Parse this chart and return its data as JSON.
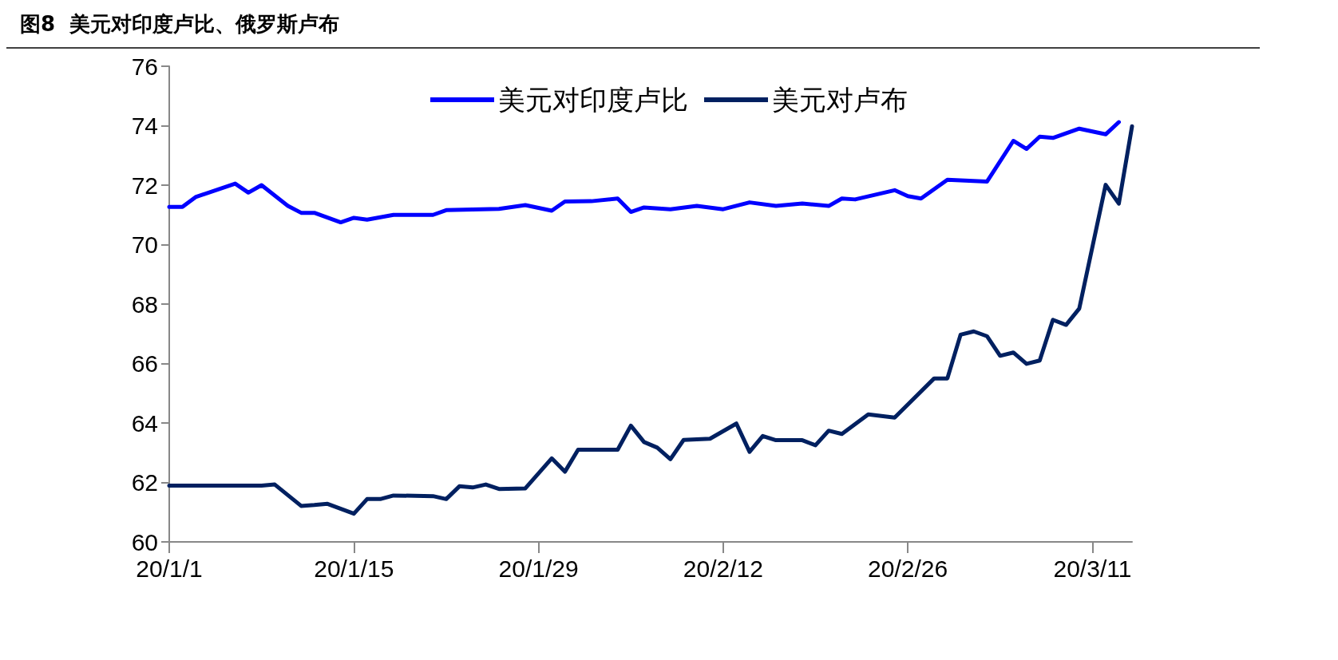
{
  "chart_data": {
    "type": "line",
    "title": "图8  美元对印度卢比、俄罗斯卢布",
    "x": [
      "--01-01",
      "--01-02",
      "--01-03",
      "--01-06",
      "--01-07",
      "--01-08",
      "--01-10",
      "--01-11",
      "--01-12",
      "--01-14",
      "--01-15",
      "--01-16",
      "--01-18",
      "--01-21",
      "--01-22",
      "--01-26",
      "--01-28",
      "--01-30",
      "--01-31",
      "--02-02",
      "--02-04",
      "--02-05",
      "--02-06",
      "--02-08",
      "--02-10",
      "--02-12",
      "--02-14",
      "--02-16",
      "--02-18",
      "--02-20",
      "--02-21",
      "--02-22",
      "--02-25",
      "--02-26",
      "--02-27",
      "--02-29",
      "--03-03",
      "--03-05",
      "--03-06",
      "--03-07",
      "--03-08",
      "--03-10",
      "--03-12",
      "--03-13"
    ],
    "series": [
      {
        "name": "美元对印度卢比",
        "color": "#0000ff",
        "values": [
          71.27,
          71.27,
          71.6,
          72.05,
          71.75,
          72.0,
          71.3,
          71.07,
          71.07,
          70.75,
          70.9,
          70.84,
          71.0,
          71.0,
          71.16,
          71.2,
          71.33,
          71.14,
          71.45,
          71.46,
          71.55,
          71.1,
          71.25,
          71.19,
          71.3,
          71.19,
          71.42,
          71.3,
          71.38,
          71.3,
          71.55,
          71.52,
          71.83,
          71.63,
          71.55,
          72.18,
          72.12,
          73.49,
          73.22,
          73.63,
          73.59,
          73.9,
          73.71,
          74.12
        ]
      },
      {
        "name": "美元对卢布",
        "color": "#002060",
        "x": [
          "--01-01",
          "--01-08",
          "--01-09",
          "--01-11",
          "--01-12",
          "--01-13",
          "--01-15",
          "--01-16",
          "--01-17",
          "--01-18",
          "--01-21",
          "--01-22",
          "--01-23",
          "--01-24",
          "--01-25",
          "--01-26",
          "--01-28",
          "--01-30",
          "--01-31",
          "--02-01",
          "--02-04",
          "--02-05",
          "--02-06",
          "--02-07",
          "--02-08",
          "--02-09",
          "--02-11",
          "--02-13",
          "--02-14",
          "--02-15",
          "--02-16",
          "--02-18",
          "--02-19",
          "--02-20",
          "--02-21",
          "--02-23",
          "--02-25",
          "--02-28",
          "--02-29",
          "--03-01",
          "--03-02",
          "--03-03",
          "--03-04",
          "--03-05",
          "--03-06",
          "--03-07",
          "--03-08",
          "--03-09",
          "--03-10",
          "--03-12",
          "--03-13",
          "--03-14"
        ],
        "values": [
          61.89,
          61.89,
          61.93,
          61.21,
          61.24,
          61.28,
          60.95,
          61.44,
          61.44,
          61.56,
          61.54,
          61.44,
          61.87,
          61.83,
          61.93,
          61.78,
          61.8,
          62.81,
          62.36,
          63.1,
          63.1,
          63.91,
          63.36,
          63.17,
          62.78,
          63.43,
          63.47,
          63.98,
          63.03,
          63.56,
          63.42,
          63.42,
          63.25,
          63.74,
          63.63,
          64.29,
          64.18,
          65.5,
          65.5,
          66.97,
          67.08,
          66.92,
          66.26,
          66.37,
          65.99,
          66.1,
          67.47,
          67.3,
          67.85,
          72.01,
          71.38,
          73.98
        ]
      }
    ],
    "xlim": [
      "--01-01",
      "--03-14"
    ],
    "xticks": [
      {
        "value": "--01-01",
        "label": "20/1/1"
      },
      {
        "value": "--01-15",
        "label": "20/1/15"
      },
      {
        "value": "--01-29",
        "label": "20/1/29"
      },
      {
        "value": "--02-12",
        "label": "20/2/12"
      },
      {
        "value": "--02-26",
        "label": "20/2/26"
      },
      {
        "value": "--03-11",
        "label": "20/3/11"
      }
    ],
    "ylim": [
      60,
      76
    ],
    "yticks": [
      60,
      62,
      64,
      66,
      68,
      70,
      72,
      74,
      76
    ],
    "grid": false,
    "legend": "top",
    "marker": "none",
    "line_style": "solid"
  }
}
